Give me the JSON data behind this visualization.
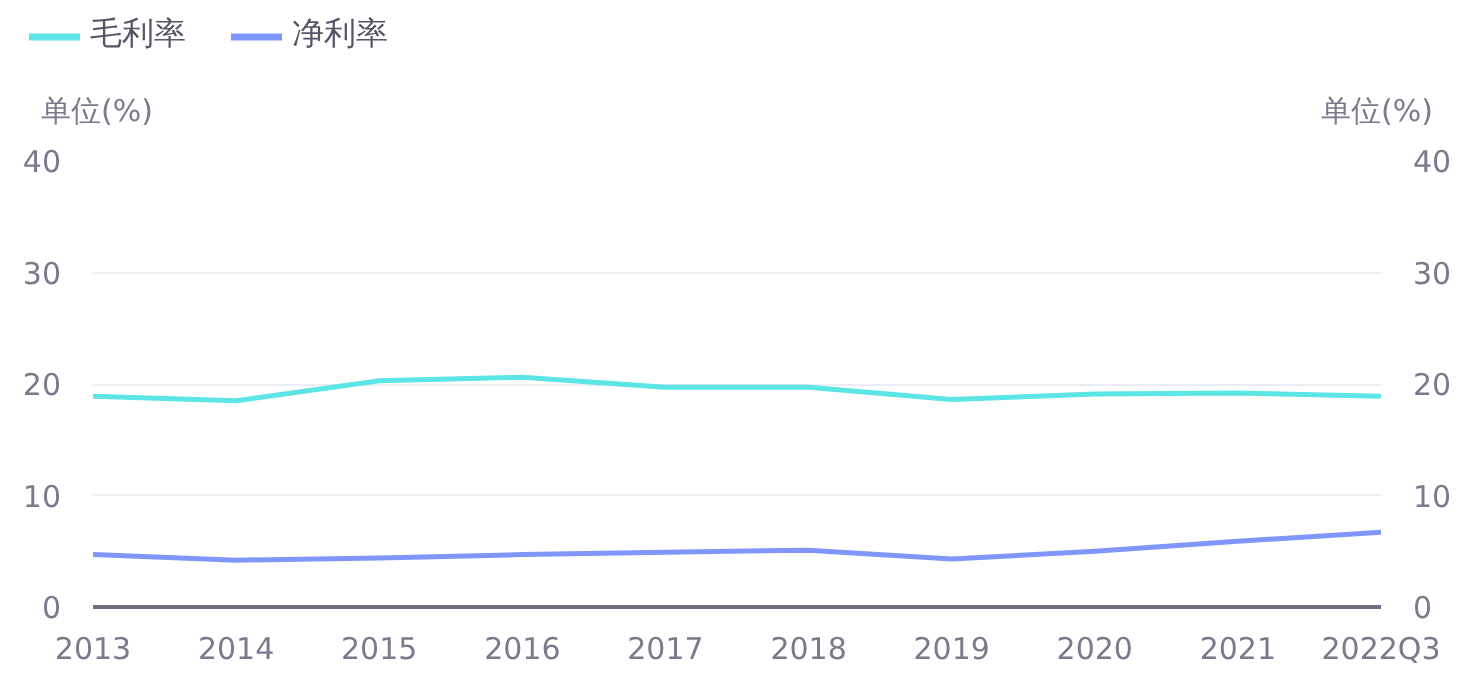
{
  "chart_data": {
    "type": "line",
    "categories": [
      "2013",
      "2014",
      "2015",
      "2016",
      "2017",
      "2018",
      "2019",
      "2020",
      "2021",
      "2022Q3"
    ],
    "series": [
      {
        "name": "毛利率",
        "color": "#5ce5e5",
        "values": [
          18.9,
          18.5,
          20.3,
          20.6,
          19.7,
          19.7,
          18.6,
          19.1,
          19.2,
          18.9
        ]
      },
      {
        "name": "净利率",
        "color": "#7f97fa",
        "values": [
          4.7,
          4.2,
          4.4,
          4.7,
          4.9,
          5.1,
          4.3,
          5.0,
          5.9,
          6.7
        ]
      }
    ],
    "ylabel": "单位(%)",
    "y2label": "单位(%)",
    "ylim": [
      0,
      40
    ],
    "yticks": [
      0,
      10,
      20,
      30,
      40
    ],
    "y2lim": [
      0,
      40
    ],
    "y2ticks": [
      0,
      10,
      20,
      30,
      40
    ],
    "grid": "y",
    "legend": "top left",
    "marker": "none",
    "line_style": "solid"
  }
}
